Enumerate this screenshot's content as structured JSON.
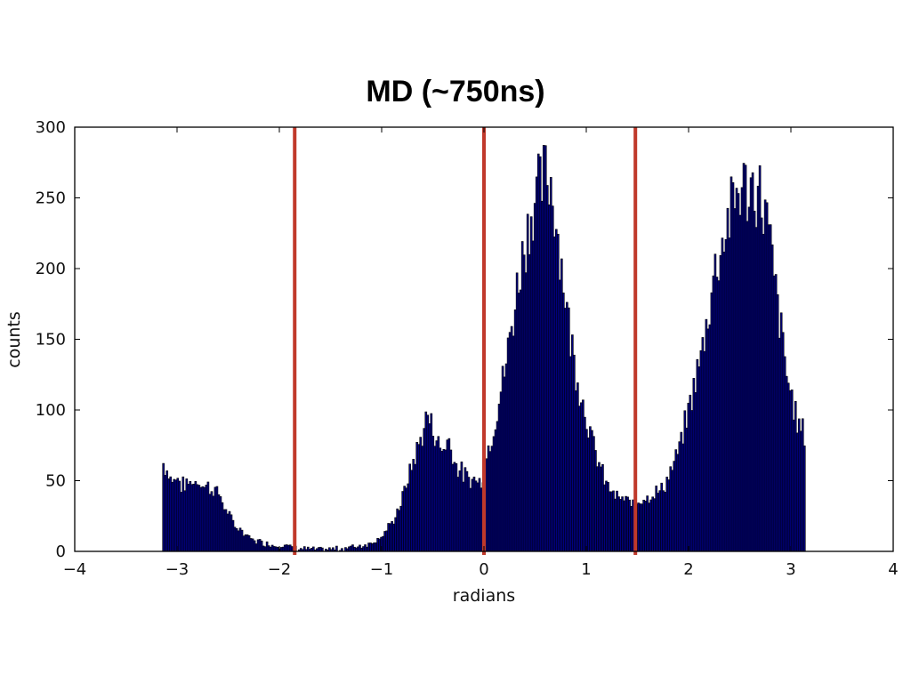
{
  "chart_data": {
    "type": "bar",
    "subtype": "histogram",
    "title": "MD (~750ns)",
    "xlabel": "radians",
    "ylabel": "counts",
    "xlim": [
      -4,
      4
    ],
    "ylim": [
      0,
      300
    ],
    "x_ticks": [
      -4,
      -3,
      -2,
      -1,
      0,
      1,
      2,
      3,
      4
    ],
    "x_tick_labels": [
      "−4",
      "−3",
      "−2",
      "−1",
      "0",
      "1",
      "2",
      "3",
      "4"
    ],
    "y_ticks": [
      0,
      50,
      100,
      150,
      200,
      250,
      300
    ],
    "y_tick_labels": [
      "0",
      "50",
      "100",
      "150",
      "200",
      "250",
      "300"
    ],
    "grid": false,
    "bar_color": "#000080",
    "bar_edge_color": "#000000",
    "bins_range": [
      -3.1416,
      3.1416
    ],
    "profile": [
      [
        -3.14,
        63
      ],
      [
        -3.1,
        58
      ],
      [
        -3.05,
        50
      ],
      [
        -3.0,
        52
      ],
      [
        -2.95,
        46
      ],
      [
        -2.9,
        48
      ],
      [
        -2.85,
        49
      ],
      [
        -2.8,
        50
      ],
      [
        -2.75,
        47
      ],
      [
        -2.7,
        46
      ],
      [
        -2.65,
        44
      ],
      [
        -2.6,
        42
      ],
      [
        -2.55,
        34
      ],
      [
        -2.5,
        26
      ],
      [
        -2.45,
        20
      ],
      [
        -2.4,
        16
      ],
      [
        -2.35,
        13
      ],
      [
        -2.3,
        10
      ],
      [
        -2.25,
        8
      ],
      [
        -2.2,
        7
      ],
      [
        -2.1,
        5
      ],
      [
        -2.0,
        4
      ],
      [
        -1.95,
        5
      ],
      [
        -1.9,
        3
      ],
      [
        -1.8,
        2
      ],
      [
        -1.6,
        1
      ],
      [
        -1.4,
        2
      ],
      [
        -1.2,
        4
      ],
      [
        -1.1,
        6
      ],
      [
        -1.0,
        11
      ],
      [
        -0.95,
        15
      ],
      [
        -0.9,
        20
      ],
      [
        -0.85,
        27
      ],
      [
        -0.8,
        37
      ],
      [
        -0.75,
        49
      ],
      [
        -0.7,
        62
      ],
      [
        -0.65,
        72
      ],
      [
        -0.6,
        84
      ],
      [
        -0.55,
        96
      ],
      [
        -0.5,
        88
      ],
      [
        -0.45,
        76
      ],
      [
        -0.4,
        72
      ],
      [
        -0.35,
        80
      ],
      [
        -0.3,
        68
      ],
      [
        -0.25,
        58
      ],
      [
        -0.2,
        55
      ],
      [
        -0.15,
        50
      ],
      [
        -0.1,
        52
      ],
      [
        -0.05,
        48
      ],
      [
        0.0,
        55
      ],
      [
        0.05,
        75
      ],
      [
        0.1,
        90
      ],
      [
        0.15,
        108
      ],
      [
        0.2,
        126
      ],
      [
        0.25,
        150
      ],
      [
        0.3,
        172
      ],
      [
        0.35,
        200
      ],
      [
        0.4,
        218
      ],
      [
        0.45,
        236
      ],
      [
        0.5,
        250
      ],
      [
        0.55,
        256
      ],
      [
        0.6,
        266
      ],
      [
        0.65,
        262
      ],
      [
        0.7,
        240
      ],
      [
        0.75,
        208
      ],
      [
        0.8,
        178
      ],
      [
        0.85,
        150
      ],
      [
        0.9,
        128
      ],
      [
        0.95,
        112
      ],
      [
        1.0,
        96
      ],
      [
        1.05,
        80
      ],
      [
        1.1,
        68
      ],
      [
        1.15,
        56
      ],
      [
        1.2,
        48
      ],
      [
        1.25,
        42
      ],
      [
        1.3,
        38
      ],
      [
        1.35,
        37
      ],
      [
        1.4,
        35
      ],
      [
        1.45,
        34
      ],
      [
        1.5,
        36
      ],
      [
        1.55,
        38
      ],
      [
        1.6,
        39
      ],
      [
        1.65,
        40
      ],
      [
        1.7,
        42
      ],
      [
        1.75,
        45
      ],
      [
        1.8,
        52
      ],
      [
        1.85,
        60
      ],
      [
        1.9,
        70
      ],
      [
        1.95,
        84
      ],
      [
        2.0,
        100
      ],
      [
        2.05,
        116
      ],
      [
        2.1,
        130
      ],
      [
        2.15,
        150
      ],
      [
        2.2,
        172
      ],
      [
        2.25,
        196
      ],
      [
        2.3,
        212
      ],
      [
        2.35,
        224
      ],
      [
        2.4,
        238
      ],
      [
        2.45,
        248
      ],
      [
        2.5,
        258
      ],
      [
        2.55,
        256
      ],
      [
        2.6,
        254
      ],
      [
        2.65,
        258
      ],
      [
        2.7,
        252
      ],
      [
        2.75,
        240
      ],
      [
        2.8,
        215
      ],
      [
        2.85,
        185
      ],
      [
        2.9,
        158
      ],
      [
        2.95,
        130
      ],
      [
        3.0,
        110
      ],
      [
        3.05,
        96
      ],
      [
        3.1,
        86
      ],
      [
        3.14,
        82
      ]
    ],
    "reference_lines": [
      {
        "x": -1.85,
        "color": "#c0392b"
      },
      {
        "x": 0.0,
        "color": "#c0392b"
      },
      {
        "x": 1.48,
        "color": "#c0392b"
      }
    ]
  }
}
